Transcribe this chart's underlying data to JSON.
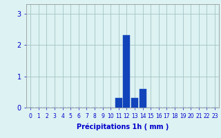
{
  "hours": [
    0,
    1,
    2,
    3,
    4,
    5,
    6,
    7,
    8,
    9,
    10,
    11,
    12,
    13,
    14,
    15,
    16,
    17,
    18,
    19,
    20,
    21,
    22,
    23
  ],
  "values": [
    0,
    0,
    0,
    0,
    0,
    0,
    0,
    0,
    0,
    0,
    0,
    0.3,
    2.3,
    0.3,
    0.6,
    0,
    0,
    0,
    0,
    0,
    0,
    0,
    0,
    0
  ],
  "bar_color": "#1144bb",
  "bar_edge_color": "#1144bb",
  "xlabel": "Précipitations 1h ( mm )",
  "xlabel_fontsize": 7,
  "xlabel_color": "#0000cc",
  "tick_color": "#0000cc",
  "tick_fontsize": 5.5,
  "ytick_fontsize": 7,
  "yticks": [
    0,
    1,
    2,
    3
  ],
  "ylim": [
    0,
    3.3
  ],
  "xlim": [
    -0.5,
    23.5
  ],
  "grid_color": "#99bbbb",
  "bg_color": "#ddf2f2",
  "bar_width": 0.85
}
